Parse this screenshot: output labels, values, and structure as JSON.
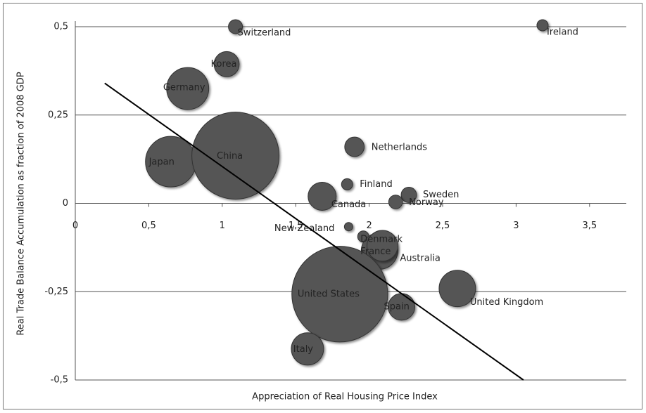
{
  "chart_data": {
    "type": "bubble",
    "x_label": "Appreciation of Real Housing Price Index",
    "y_label": "Real Trade Balance Accumulation as fraction of 2008 GDP",
    "xlim": [
      0,
      3.75
    ],
    "ylim": [
      -0.5,
      0.5
    ],
    "xticks": [
      0,
      {
        "value": 0.5,
        "label": "0,5"
      },
      1,
      {
        "value": 1.5,
        "label": "1,5"
      },
      2,
      {
        "value": 2.5,
        "label": "2,5"
      },
      3,
      {
        "value": 3.5,
        "label": "3,5"
      }
    ],
    "yticks": [
      {
        "value": -0.5,
        "label": "-0,5"
      },
      {
        "value": -0.25,
        "label": "-0,25"
      },
      0,
      {
        "value": 0.25,
        "label": "0,25"
      },
      {
        "value": 0.5,
        "label": "0,5"
      }
    ],
    "grid": true,
    "color": "#555555",
    "points": [
      {
        "name": "Switzerland",
        "x": 1.09,
        "y": 0.5,
        "size": 6.25
      },
      {
        "name": "Ireland",
        "x": 3.18,
        "y": 0.504,
        "size": 4
      },
      {
        "name": "Korea",
        "x": 1.03,
        "y": 0.394,
        "size": 20
      },
      {
        "name": "Germany",
        "x": 0.765,
        "y": 0.325,
        "size": 56
      },
      {
        "name": "Japan",
        "x": 0.65,
        "y": 0.118,
        "size": 81
      },
      {
        "name": "China",
        "x": 1.09,
        "y": 0.135,
        "size": 240
      },
      {
        "name": "Netherlands",
        "x": 1.9,
        "y": 0.16,
        "size": 12
      },
      {
        "name": "Finland",
        "x": 1.85,
        "y": 0.054,
        "size": 4
      },
      {
        "name": "Sweden",
        "x": 2.27,
        "y": 0.024,
        "size": 7.5
      },
      {
        "name": "Norway",
        "x": 2.18,
        "y": 0.004,
        "size": 6
      },
      {
        "name": "Canada",
        "x": 1.68,
        "y": 0.02,
        "size": 25
      },
      {
        "name": "New Zealand",
        "x": 1.86,
        "y": -0.066,
        "size": 2.25
      },
      {
        "name": "Denmark",
        "x": 1.96,
        "y": -0.094,
        "size": 4
      },
      {
        "name": "France",
        "x": 2.07,
        "y": -0.135,
        "size": 42
      },
      {
        "name": "Australia",
        "x": 2.09,
        "y": -0.12,
        "size": 30
      },
      {
        "name": "United States",
        "x": 1.8,
        "y": -0.257,
        "size": 290
      },
      {
        "name": "Spain",
        "x": 2.22,
        "y": -0.293,
        "size": 22.5
      },
      {
        "name": "United Kingdom",
        "x": 2.6,
        "y": -0.241,
        "size": 42
      },
      {
        "name": "Italy",
        "x": 1.58,
        "y": -0.412,
        "size": 33
      }
    ],
    "trendline": {
      "x": [
        0.2,
        3.05
      ],
      "y": [
        0.34,
        -0.5
      ]
    }
  }
}
